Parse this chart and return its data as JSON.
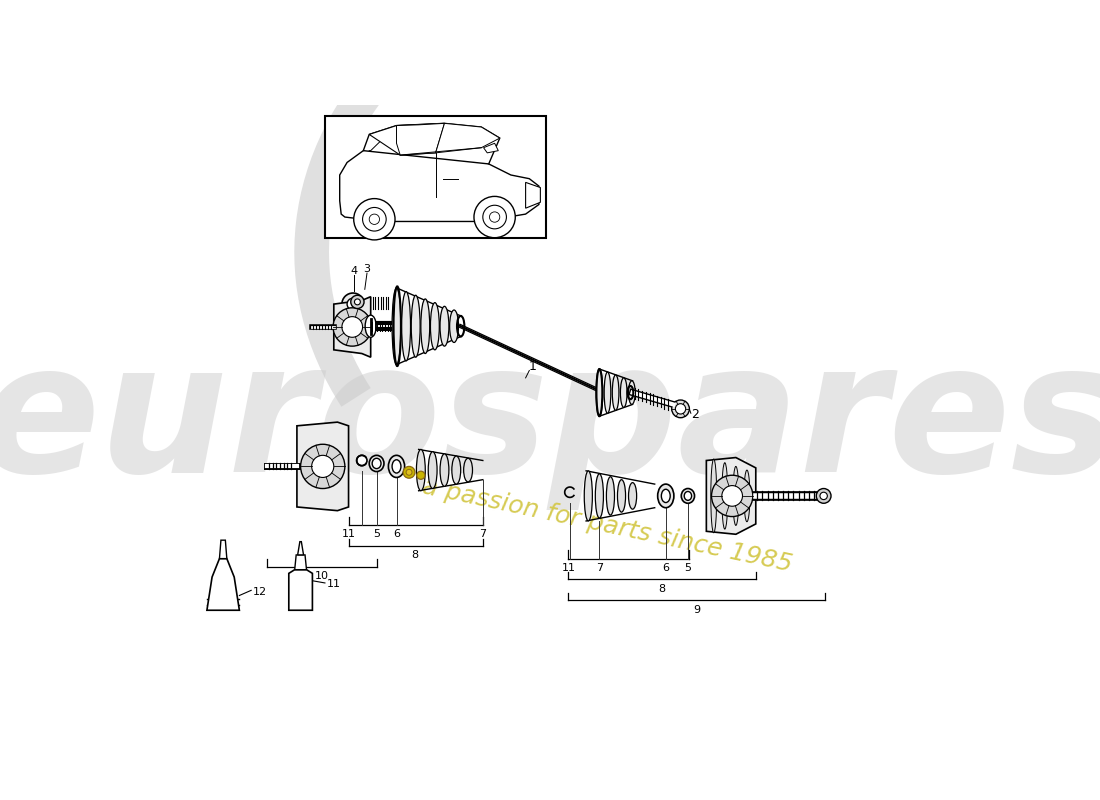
{
  "bg_color": "#ffffff",
  "line_color": "#000000",
  "watermark_text1": "eurospares",
  "watermark_text2": "a passion for parts since 1985",
  "watermark_color1": "#cccccc",
  "watermark_color2": "#d4c84a"
}
